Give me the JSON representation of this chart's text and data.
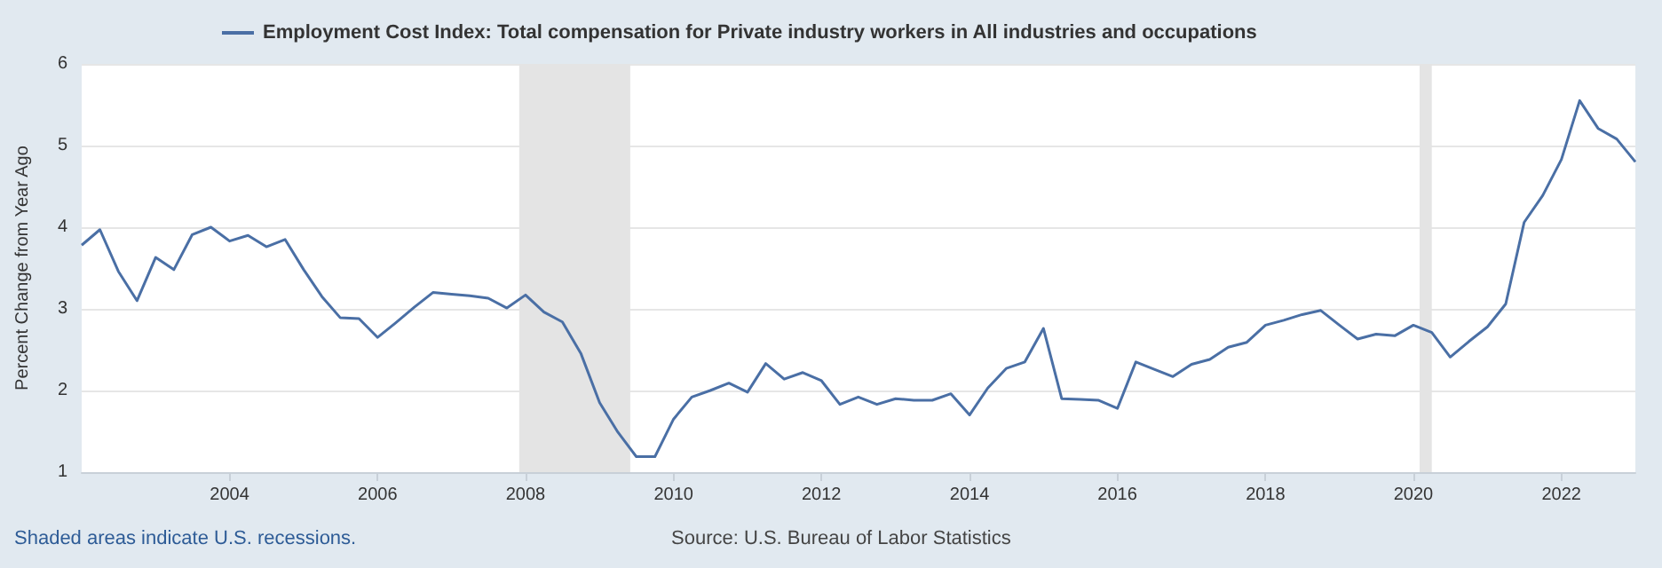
{
  "chart_data": {
    "type": "line",
    "ylabel": "Percent Change from Year Ago",
    "annotations": [
      "Shaded areas indicate U.S. recessions.",
      "Source: U.S. Bureau of Labor Statistics"
    ],
    "x": [
      "2002-01",
      "2002-04",
      "2002-07",
      "2002-10",
      "2003-01",
      "2003-04",
      "2003-07",
      "2003-10",
      "2004-01",
      "2004-04",
      "2004-07",
      "2004-10",
      "2005-01",
      "2005-04",
      "2005-07",
      "2005-10",
      "2006-01",
      "2006-04",
      "2006-07",
      "2006-10",
      "2007-01",
      "2007-04",
      "2007-07",
      "2007-10",
      "2008-01",
      "2008-04",
      "2008-07",
      "2008-10",
      "2009-01",
      "2009-04",
      "2009-07",
      "2009-10",
      "2010-01",
      "2010-04",
      "2010-07",
      "2010-10",
      "2011-01",
      "2011-04",
      "2011-07",
      "2011-10",
      "2012-01",
      "2012-04",
      "2012-07",
      "2012-10",
      "2013-01",
      "2013-04",
      "2013-07",
      "2013-10",
      "2014-01",
      "2014-04",
      "2014-07",
      "2014-10",
      "2015-01",
      "2015-04",
      "2015-07",
      "2015-10",
      "2016-01",
      "2016-04",
      "2016-07",
      "2016-10",
      "2017-01",
      "2017-04",
      "2017-07",
      "2017-10",
      "2018-01",
      "2018-04",
      "2018-07",
      "2018-10",
      "2019-01",
      "2019-04",
      "2019-07",
      "2019-10",
      "2020-01",
      "2020-04",
      "2020-07",
      "2020-10",
      "2021-01",
      "2021-04",
      "2021-07",
      "2021-10",
      "2022-01",
      "2022-04",
      "2022-07",
      "2022-10",
      "2023-01"
    ],
    "series": [
      {
        "name": "Employment Cost Index: Total compensation for Private industry workers in All industries and occupations",
        "color": "#4a6fa5",
        "values": [
          3.78,
          3.97,
          3.46,
          3.1,
          3.63,
          3.48,
          3.91,
          4.0,
          3.83,
          3.9,
          3.76,
          3.85,
          3.48,
          3.15,
          2.89,
          2.88,
          2.65,
          2.83,
          3.02,
          3.2,
          3.18,
          3.16,
          3.13,
          3.01,
          3.17,
          2.96,
          2.84,
          2.45,
          1.85,
          1.49,
          1.19,
          1.19,
          1.65,
          1.92,
          2.0,
          2.09,
          1.98,
          2.33,
          2.14,
          2.22,
          2.12,
          1.83,
          1.92,
          1.83,
          1.9,
          1.88,
          1.88,
          1.96,
          1.7,
          2.03,
          2.27,
          2.35,
          2.76,
          1.9,
          1.89,
          1.88,
          1.78,
          2.35,
          2.26,
          2.17,
          2.32,
          2.38,
          2.53,
          2.59,
          2.8,
          2.86,
          2.93,
          2.98,
          2.8,
          2.63,
          2.69,
          2.67,
          2.8,
          2.71,
          2.41,
          2.6,
          2.78,
          3.06,
          4.06,
          4.39,
          4.83,
          5.55,
          5.21,
          5.08,
          4.8
        ]
      }
    ],
    "xlim": [
      "2002-01",
      "2023-01"
    ],
    "xticks": [
      {
        "value": "2004",
        "label": "2004"
      },
      {
        "value": "2006",
        "label": "2006"
      },
      {
        "value": "2008",
        "label": "2008"
      },
      {
        "value": "2010",
        "label": "2010"
      },
      {
        "value": "2012",
        "label": "2012"
      },
      {
        "value": "2014",
        "label": "2014"
      },
      {
        "value": "2016",
        "label": "2016"
      },
      {
        "value": "2018",
        "label": "2018"
      },
      {
        "value": "2020",
        "label": "2020"
      },
      {
        "value": "2022",
        "label": "2022"
      }
    ],
    "ylim": [
      1,
      6
    ],
    "yticks": [
      1,
      2,
      3,
      4,
      5,
      6
    ],
    "bands": [
      {
        "axis": "x",
        "from": "2007-12",
        "to": "2009-06",
        "color": "#e4e4e4"
      },
      {
        "axis": "x",
        "from": "2020-02",
        "to": "2020-04",
        "color": "#e4e4e4"
      }
    ],
    "grid": "y",
    "legend": "top",
    "marker": "none",
    "line_style": "solid"
  }
}
